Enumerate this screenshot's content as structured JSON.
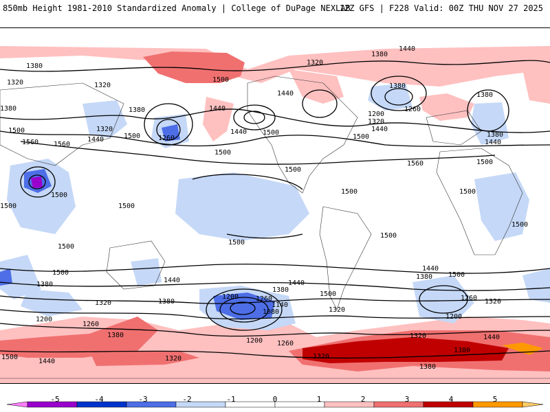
{
  "header": {
    "left": "850mb Height 1981-2010 Standardized Anomaly | College of DuPage NEXLAB",
    "right": "12Z GFS | F228 Valid: 00Z THU NOV 27 2025"
  },
  "colorbar": {
    "ticks": [
      "-5",
      "-4",
      "-3",
      "-2",
      "-1",
      "0",
      "1",
      "2",
      "3",
      "4",
      "5"
    ],
    "colors": [
      "#ff80ff",
      "#9900cc",
      "#0033cc",
      "#4d6ee6",
      "#c5d8f7",
      "#ffffff",
      "#ffffff",
      "#ffc0c0",
      "#f07070",
      "#c00000",
      "#ff9900"
    ],
    "end_color": "#ffcc66"
  },
  "contour_labels": {
    "l1380a": "1380",
    "l1380b": "1380",
    "l1380c": "1380",
    "l1380d": "1380",
    "l1380e": "1380",
    "l1380f": "1380",
    "l1380g": "1380",
    "l1380h": "1380",
    "l1380i": "1380",
    "l1380j": "1380",
    "l1380k": "1380",
    "l1380l": "1380",
    "l1380m": "1380",
    "l1440a": "1440",
    "l1440b": "1440",
    "l1440c": "1440",
    "l1440d": "1440",
    "l1440e": "1440",
    "l1440f": "1440",
    "l1440g": "1440",
    "l1440h": "1440",
    "l1440i": "1440",
    "l1440j": "1440",
    "l1440k": "1440",
    "l1440l": "1440",
    "l1320a": "1320",
    "l1320b": "1320",
    "l1320c": "1320",
    "l1320d": "1320",
    "l1320e": "1320",
    "l1320f": "1320",
    "l1320g": "1320",
    "l1320h": "1320",
    "l1320i": "1320",
    "l1320j": "1320",
    "l1500a": "1500",
    "l1500b": "1500",
    "l1500c": "1500",
    "l1500d": "1500",
    "l1500e": "1500",
    "l1500f": "1500",
    "l1500g": "1500",
    "l1500h": "1500",
    "l1500i": "1500",
    "l1500j": "1500",
    "l1500k": "1500",
    "l1500l": "1500",
    "l1500m": "1500",
    "l1500n": "1500",
    "l1500o": "1500",
    "l1500p": "1500",
    "l1500q": "1500",
    "l1500r": "1500",
    "l1500s": "1500",
    "l1500t": "1500",
    "l1560a": "1560",
    "l1560b": "1560",
    "l1560c": "1560",
    "l1260a": "1260",
    "l1260b": "1260",
    "l1260c": "1260",
    "l1260d": "1260",
    "l1260e": "1260",
    "l1260f": "1260",
    "l1200a": "1200",
    "l1200b": "1200",
    "l1200c": "1200",
    "l1200d": "1200",
    "l1200e": "1200",
    "l1140a": "1140",
    "l1080a": "1080"
  }
}
